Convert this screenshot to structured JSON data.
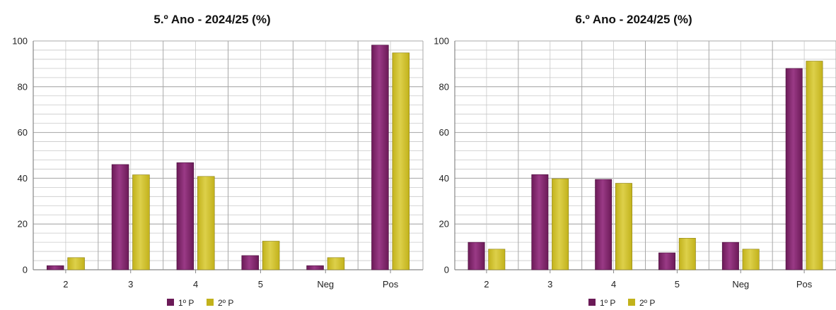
{
  "colors": {
    "p1": "#6b1a57",
    "p2": "#c2b21b",
    "grid": "#c8c8c8",
    "axis": "#888888"
  },
  "chart_data": [
    {
      "type": "bar",
      "title": "5.º Ano - 2024/25 (%)",
      "categories": [
        "2",
        "3",
        "4",
        "5",
        "Neg",
        "Pos"
      ],
      "ylim": [
        0,
        100
      ],
      "yticks": [
        "0",
        "20",
        "40",
        "60",
        "80",
        "100"
      ],
      "grid": true,
      "legend_position": "bottom",
      "series": [
        {
          "name": "1º P",
          "values": [
            1.8,
            46,
            46.8,
            6.2,
            1.8,
            98.2
          ]
        },
        {
          "name": "2º P",
          "values": [
            5.3,
            41.5,
            40.8,
            12.5,
            5.3,
            94.8
          ]
        }
      ]
    },
    {
      "type": "bar",
      "title": "6.º Ano - 2024/25 (%)",
      "categories": [
        "2",
        "3",
        "4",
        "5",
        "Neg",
        "Pos"
      ],
      "ylim": [
        0,
        100
      ],
      "yticks": [
        "0",
        "20",
        "40",
        "60",
        "80",
        "100"
      ],
      "grid": true,
      "legend_position": "bottom",
      "series": [
        {
          "name": "1º P",
          "values": [
            12,
            41.6,
            39.5,
            7.4,
            12,
            88
          ]
        },
        {
          "name": "2º P",
          "values": [
            9,
            39.8,
            37.8,
            13.8,
            9,
            91.2
          ]
        }
      ]
    }
  ]
}
